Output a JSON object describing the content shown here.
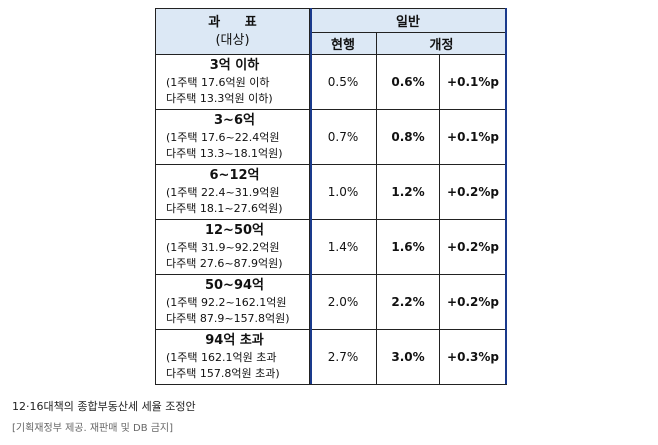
{
  "table": {
    "header": {
      "subject_line1": "과 표",
      "subject_line2": "(대상)",
      "group": "일반",
      "current": "현행",
      "revised": "개정"
    },
    "rows": [
      {
        "bracket": "3억 이하",
        "line1": "(1주택 17.6억원 이하",
        "line2": "다주택 13.3억원 이하)",
        "current": "0.5%",
        "revised": "0.6%",
        "diff": "+0.1%p"
      },
      {
        "bracket": "3~6억",
        "line1": "(1주택 17.6~22.4억원",
        "line2": "다주택 13.3~18.1억원)",
        "current": "0.7%",
        "revised": "0.8%",
        "diff": "+0.1%p"
      },
      {
        "bracket": "6~12억",
        "line1": "(1주택 22.4~31.9억원",
        "line2": "다주택 18.1~27.6억원)",
        "current": "1.0%",
        "revised": "1.2%",
        "diff": "+0.2%p"
      },
      {
        "bracket": "12~50억",
        "line1": "(1주택 31.9~92.2억원",
        "line2": "다주택 27.6~87.9억원)",
        "current": "1.4%",
        "revised": "1.6%",
        "diff": "+0.2%p"
      },
      {
        "bracket": "50~94억",
        "line1": "(1주택 92.2~162.1억원",
        "line2": "다주택 87.9~157.8억원)",
        "current": "2.0%",
        "revised": "2.2%",
        "diff": "+0.2%p"
      },
      {
        "bracket": "94억 초과",
        "line1": "(1주택 162.1억원 초과",
        "line2": "다주택 157.8억원 초과)",
        "current": "2.7%",
        "revised": "3.0%",
        "diff": "+0.3%p"
      }
    ]
  },
  "caption": "12·16대책의 종합부동산세 세율 조정안",
  "credit": "[기획재정부 제공. 재판매 및 DB 금지]",
  "colors": {
    "header_bg": "#dce8f5",
    "frame_blue": "#1a3a8c"
  }
}
